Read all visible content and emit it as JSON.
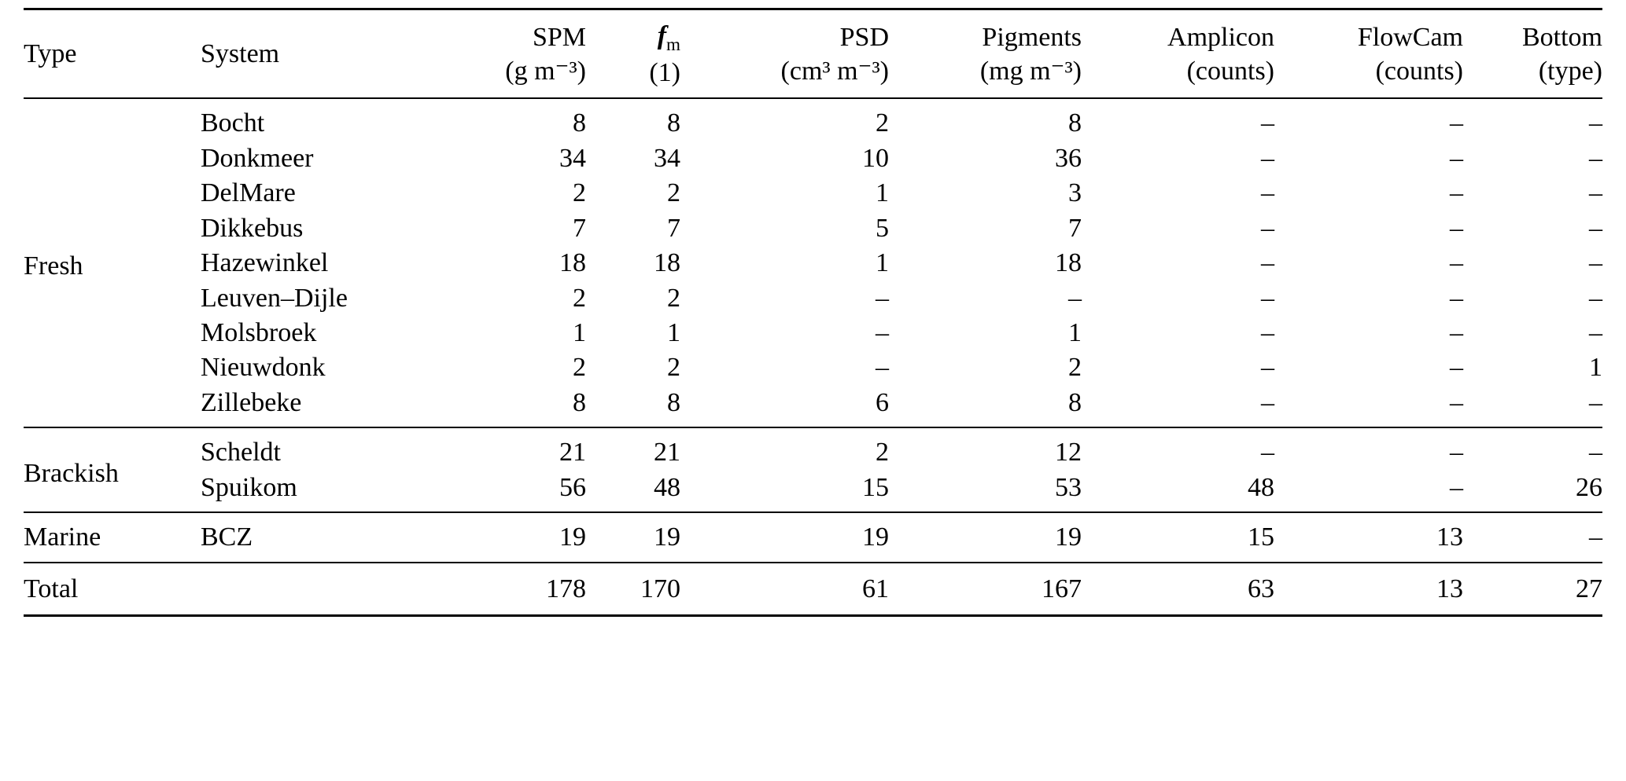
{
  "colors": {
    "background": "#ffffff",
    "text": "#000000",
    "rule": "#000000"
  },
  "table": {
    "header": {
      "type_label": "Type",
      "system_label": "System",
      "metric_columns": [
        {
          "name": "spm",
          "main": "SPM",
          "unit": "(g m⁻³)"
        },
        {
          "name": "fm",
          "main": "f",
          "sub": "m",
          "italic": true,
          "unit": "(1)"
        },
        {
          "name": "psd",
          "main": "PSD",
          "unit": "(cm³ m⁻³)"
        },
        {
          "name": "pigments",
          "main": "Pigments",
          "unit": "(mg m⁻³)"
        },
        {
          "name": "amplicon",
          "main": "Amplicon",
          "unit": "(counts)"
        },
        {
          "name": "flowcam",
          "main": "FlowCam",
          "unit": "(counts)"
        },
        {
          "name": "bottom",
          "main": "Bottom",
          "unit": "(type)"
        }
      ]
    },
    "groups": [
      {
        "type": "Fresh",
        "rows": [
          {
            "system": "Bocht",
            "values": [
              "8",
              "8",
              "2",
              "8",
              "–",
              "–",
              "–"
            ]
          },
          {
            "system": "Donkmeer",
            "values": [
              "34",
              "34",
              "10",
              "36",
              "–",
              "–",
              "–"
            ]
          },
          {
            "system": "DelMare",
            "values": [
              "2",
              "2",
              "1",
              "3",
              "–",
              "–",
              "–"
            ]
          },
          {
            "system": "Dikkebus",
            "values": [
              "7",
              "7",
              "5",
              "7",
              "–",
              "–",
              "–"
            ]
          },
          {
            "system": "Hazewinkel",
            "values": [
              "18",
              "18",
              "1",
              "18",
              "–",
              "–",
              "–"
            ]
          },
          {
            "system": "Leuven–Dijle",
            "values": [
              "2",
              "2",
              "–",
              "–",
              "–",
              "–",
              "–"
            ]
          },
          {
            "system": "Molsbroek",
            "values": [
              "1",
              "1",
              "–",
              "1",
              "–",
              "–",
              "–"
            ]
          },
          {
            "system": "Nieuwdonk",
            "values": [
              "2",
              "2",
              "–",
              "2",
              "–",
              "–",
              "1"
            ]
          },
          {
            "system": "Zillebeke",
            "values": [
              "8",
              "8",
              "6",
              "8",
              "–",
              "–",
              "–"
            ]
          }
        ]
      },
      {
        "type": "Brackish",
        "rows": [
          {
            "system": "Scheldt",
            "values": [
              "21",
              "21",
              "2",
              "12",
              "–",
              "–",
              "–"
            ]
          },
          {
            "system": "Spuikom",
            "values": [
              "56",
              "48",
              "15",
              "53",
              "48",
              "–",
              "26"
            ]
          }
        ]
      },
      {
        "type": "Marine",
        "rows": [
          {
            "system": "BCZ",
            "values": [
              "19",
              "19",
              "19",
              "19",
              "15",
              "13",
              "–"
            ]
          }
        ]
      }
    ],
    "total": {
      "label": "Total",
      "values": [
        "178",
        "170",
        "61",
        "167",
        "63",
        "13",
        "27"
      ]
    }
  }
}
